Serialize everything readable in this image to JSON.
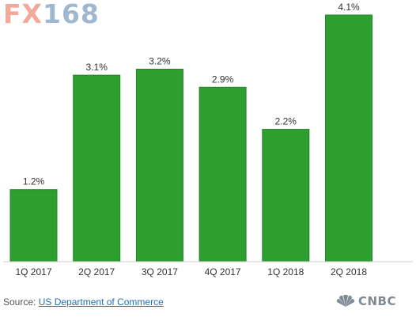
{
  "watermark": {
    "part1": "FX",
    "part2": "168"
  },
  "chart_data": {
    "type": "bar",
    "categories": [
      "1Q 2017",
      "2Q 2017",
      "3Q 2017",
      "4Q 2017",
      "1Q 2018",
      "2Q 2018"
    ],
    "values": [
      1.2,
      3.1,
      3.2,
      2.9,
      2.2,
      4.1
    ],
    "data_labels": [
      "1.2%",
      "3.1%",
      "3.2%",
      "2.9%",
      "2.2%",
      "4.1%"
    ],
    "ylim": [
      0,
      4.1
    ],
    "grid": false,
    "bar_color": "#2e9e2e",
    "bar_border_color": "#22852a"
  },
  "footer": {
    "source_prefix": "Source: ",
    "source_link": "US Department of Commerce",
    "brand": "CNBC"
  }
}
